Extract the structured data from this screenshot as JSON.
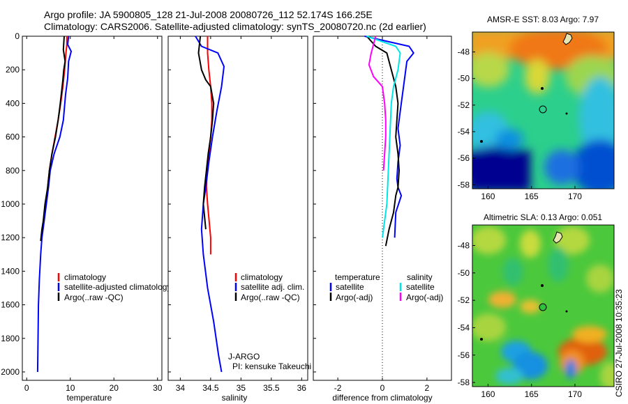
{
  "header": {
    "line1": "Argo profile: JA 5900805_128 21-Jul-2008 20080726_112 52.174S 166.25E",
    "line2": "Climatology: CARS2006. Satellite-adjusted climatology: synTS_20080720.nc (2d earlier)"
  },
  "credit": "CSIRO 27-Jul-2008 10:35:23",
  "colors": {
    "climatology": "#ff0000",
    "satellite": "#0000ff",
    "argo": "#000000",
    "sat_salinity": "#00e5e5",
    "argo_salinity": "#ff00ff"
  },
  "chart_data": [
    {
      "type": "line",
      "xlabel": "temperature",
      "ylabel": "",
      "xlim": [
        -1,
        31
      ],
      "ylim": [
        2050,
        0
      ],
      "xticks": [
        0,
        10,
        20,
        30
      ],
      "yticks": [
        0,
        200,
        400,
        600,
        800,
        1000,
        1200,
        1400,
        1600,
        1800,
        2000
      ],
      "legend": [
        "climatology",
        "satellite-adjusted climatology",
        "Argo(..raw -QC)"
      ],
      "series": [
        {
          "name": "climatology",
          "color": "#ff0000",
          "x": [
            9.2,
            9.2,
            9.0,
            8.7,
            8.3,
            7.8,
            7.2,
            6.5,
            5.8,
            5.2,
            4.8,
            4.5
          ],
          "y": [
            0,
            50,
            100,
            200,
            300,
            400,
            500,
            600,
            700,
            800,
            900,
            1000
          ]
        },
        {
          "name": "satellite-adjusted climatology",
          "color": "#0000ff",
          "x": [
            9.6,
            9.4,
            10.2,
            9.6,
            9.4,
            8.9,
            8.4,
            7.6,
            6.3,
            5.4,
            5.0,
            4.5,
            4.0,
            3.5,
            3.2,
            2.9,
            2.7,
            2.6,
            2.5
          ],
          "y": [
            0,
            50,
            90,
            150,
            250,
            350,
            500,
            600,
            700,
            800,
            900,
            1000,
            1100,
            1200,
            1300,
            1450,
            1600,
            1800,
            2000
          ]
        },
        {
          "name": "Argo(..raw -QC)",
          "color": "#000000",
          "x": [
            8.6,
            8.4,
            8.8,
            8.5,
            8.3,
            8.0,
            7.6,
            7.2,
            6.6,
            5.8,
            5.2,
            4.8,
            4.2,
            3.8,
            3.5,
            3.2
          ],
          "y": [
            0,
            80,
            150,
            200,
            260,
            330,
            420,
            500,
            600,
            700,
            800,
            900,
            1000,
            1100,
            1150,
            1220
          ]
        }
      ]
    },
    {
      "type": "line",
      "xlabel": "salinity",
      "xlim": [
        33.8,
        36.1
      ],
      "ylim": [
        2050,
        0
      ],
      "xticks": [
        34,
        34.5,
        35,
        35.5,
        36
      ],
      "legend": [
        "climatology",
        "satellite adj. clim.",
        "Argo(..raw -QC)"
      ],
      "annotation": [
        "J-ARGO",
        "PI: kensuke Takeuchi"
      ],
      "series": [
        {
          "name": "climatology",
          "color": "#ff0000",
          "x": [
            34.45,
            34.45,
            34.47,
            34.5,
            34.52,
            34.52,
            34.5,
            34.47,
            34.44,
            34.43,
            34.45,
            34.5,
            34.5
          ],
          "y": [
            0,
            100,
            200,
            300,
            400,
            500,
            600,
            700,
            800,
            900,
            1000,
            1200,
            1300
          ]
        },
        {
          "name": "satellite adj. clim.",
          "color": "#0000ff",
          "x": [
            34.25,
            34.35,
            34.62,
            34.72,
            34.68,
            34.6,
            34.53,
            34.47,
            34.42,
            34.38,
            34.35,
            34.38,
            34.45,
            34.55,
            34.63,
            34.68
          ],
          "y": [
            0,
            60,
            100,
            180,
            300,
            450,
            600,
            750,
            900,
            1000,
            1150,
            1300,
            1500,
            1700,
            1900,
            2000
          ]
        },
        {
          "name": "Argo(..raw -QC)",
          "color": "#000000",
          "x": [
            34.33,
            34.3,
            34.35,
            34.42,
            34.5,
            34.55,
            34.53,
            34.5,
            34.46,
            34.43,
            34.4,
            34.38,
            34.42
          ],
          "y": [
            0,
            100,
            200,
            260,
            300,
            400,
            500,
            600,
            700,
            800,
            900,
            1000,
            1150
          ]
        }
      ]
    },
    {
      "type": "line",
      "xlabel": "difference from climatology",
      "xlim": [
        -3.1,
        3.1
      ],
      "ylim": [
        2050,
        0
      ],
      "xticks": [
        -2,
        0,
        2
      ],
      "legend_headers": [
        "temperature",
        "salinity"
      ],
      "legend": [
        "satellite",
        "Argo(-adj)",
        "satellite",
        "Argo(-adj)"
      ],
      "series": [
        {
          "name": "satellite",
          "quantity": "temperature",
          "color": "#0000ff",
          "x": [
            -0.8,
            1.2,
            1.4,
            1.1,
            1.0,
            0.9,
            0.8,
            0.7,
            0.8,
            0.7,
            0.65,
            0.7,
            0.85,
            0.6,
            0.55
          ],
          "y": [
            0,
            60,
            100,
            150,
            250,
            350,
            450,
            550,
            650,
            750,
            850,
            900,
            950,
            1050,
            1200
          ]
        },
        {
          "name": "Argo(-adj)",
          "quantity": "temperature",
          "color": "#000000",
          "x": [
            -0.7,
            -0.3,
            0.2,
            0.4,
            0.6,
            0.7,
            0.65,
            0.6,
            0.7,
            0.75,
            0.7,
            0.6,
            0.5,
            0.3,
            0.15
          ],
          "y": [
            0,
            60,
            100,
            200,
            300,
            400,
            500,
            600,
            700,
            800,
            900,
            950,
            1050,
            1150,
            1250
          ]
        },
        {
          "name": "satellite",
          "quantity": "salinity",
          "color": "#00e5e5",
          "x": [
            -0.7,
            0.6,
            0.8,
            0.7,
            0.5,
            0.4,
            0.35,
            0.3,
            0.25,
            0.2,
            0.1,
            0.0
          ],
          "y": [
            0,
            60,
            100,
            200,
            300,
            400,
            550,
            700,
            850,
            1000,
            1100,
            1200
          ]
        },
        {
          "name": "Argo(-adj)",
          "quantity": "salinity",
          "color": "#ff00ff",
          "x": [
            -0.3,
            -0.5,
            -0.6,
            -0.4,
            0.0,
            0.1,
            0.15,
            0.15,
            0.1,
            0.05
          ],
          "y": [
            0,
            100,
            170,
            240,
            300,
            400,
            500,
            600,
            700,
            800
          ]
        }
      ]
    },
    {
      "type": "heatmap",
      "title": "AMSR-E SST: 8.03 Argo: 7.97",
      "xlim": [
        158.2,
        174.5
      ],
      "ylim": [
        -58.3,
        -46.5
      ],
      "xticks": [
        160,
        165,
        170
      ],
      "yticks": [
        -48,
        -50,
        -52,
        -54,
        -56,
        -58
      ],
      "profile_marker": [
        166.25,
        -52.17
      ]
    },
    {
      "type": "heatmap",
      "title": "Altimetric SLA: 0.13 Argo: 0.051",
      "xlim": [
        158.2,
        174.5
      ],
      "ylim": [
        -58.3,
        -46.5
      ],
      "xticks": [
        160,
        165,
        170
      ],
      "yticks": [
        -48,
        -50,
        -52,
        -54,
        -56,
        -58
      ],
      "profile_marker": [
        166.25,
        -52.17
      ]
    }
  ]
}
